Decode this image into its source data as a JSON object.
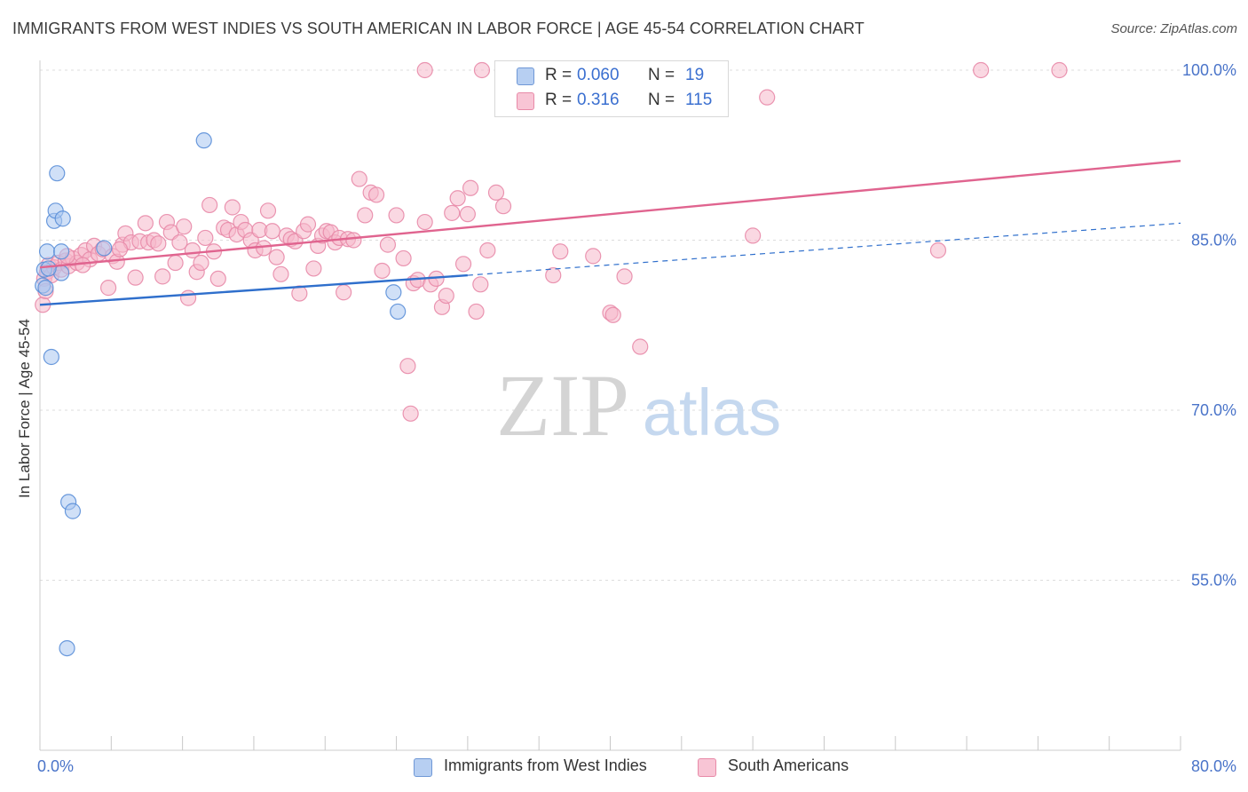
{
  "title": "IMMIGRANTS FROM WEST INDIES VS SOUTH AMERICAN IN LABOR FORCE | AGE 45-54 CORRELATION CHART",
  "source": "Source: ZipAtlas.com",
  "watermark": {
    "zip": "ZIP",
    "atlas": "atlas"
  },
  "legend": {
    "rows": [
      {
        "r_label": "R =",
        "r_value": "0.060",
        "n_label": "N =",
        "n_value": "19"
      },
      {
        "r_label": "R =",
        "r_value": "0.316",
        "n_label": "N =",
        "n_value": "115"
      }
    ]
  },
  "chart_data": {
    "type": "scatter",
    "title": "IMMIGRANTS FROM WEST INDIES VS SOUTH AMERICAN IN LABOR FORCE | AGE 45-54 CORRELATION CHART",
    "xlabel": "",
    "ylabel": "In Labor Force | Age 45-54",
    "xlim": [
      0,
      80
    ],
    "ylim": [
      40,
      101.5
    ],
    "x_tick_labels": [
      "0.0%",
      "80.0%"
    ],
    "y_ticks": [
      55,
      70,
      85,
      100
    ],
    "y_tick_labels": [
      "55.0%",
      "70.0%",
      "85.0%",
      "100.0%"
    ],
    "grid": true,
    "colors": {
      "blue_fill": "#a9c6f0",
      "blue_stroke": "#5b8fd8",
      "blue_line": "#2f6fcc",
      "pink_fill": "#f5b8cb",
      "pink_stroke": "#e88aa8",
      "pink_line": "#e0648f",
      "axis_label": "#4a74c9",
      "grid": "#dddddd"
    },
    "series": [
      {
        "name": "Immigrants from West Indies",
        "color": "blue",
        "r": 0.06,
        "n": 19,
        "trend": {
          "x0": 0,
          "y0": 79.3,
          "x1": 30,
          "y1": 81.9,
          "dash_to_x": 80,
          "dash_to_y": 86.5
        },
        "points": [
          [
            0.2,
            81.0
          ],
          [
            0.3,
            82.4
          ],
          [
            0.5,
            84.0
          ],
          [
            0.4,
            80.8
          ],
          [
            0.8,
            74.7
          ],
          [
            1.0,
            86.7
          ],
          [
            1.1,
            87.6
          ],
          [
            1.2,
            90.9
          ],
          [
            1.5,
            84.0
          ],
          [
            1.6,
            86.9
          ],
          [
            1.5,
            82.1
          ],
          [
            2.0,
            61.9
          ],
          [
            2.3,
            61.1
          ],
          [
            1.9,
            49.0
          ],
          [
            4.5,
            84.3
          ],
          [
            11.5,
            93.8
          ],
          [
            24.8,
            80.4
          ],
          [
            25.1,
            78.7
          ],
          [
            0.6,
            82.5
          ]
        ]
      },
      {
        "name": "South Americans",
        "color": "pink",
        "r": 0.316,
        "n": 115,
        "trend": {
          "x0": 0,
          "y0": 82.6,
          "x1": 80,
          "y1": 92.0
        },
        "points": [
          [
            0.2,
            79.3
          ],
          [
            0.3,
            81.6
          ],
          [
            0.5,
            82.2
          ],
          [
            0.6,
            82.8
          ],
          [
            0.8,
            81.9
          ],
          [
            1.0,
            82.6
          ],
          [
            1.3,
            83.0
          ],
          [
            1.5,
            82.4
          ],
          [
            1.8,
            83.2
          ],
          [
            2.0,
            82.7
          ],
          [
            2.3,
            83.4
          ],
          [
            2.6,
            83.0
          ],
          [
            2.9,
            83.7
          ],
          [
            3.2,
            84.1
          ],
          [
            3.5,
            83.3
          ],
          [
            3.8,
            84.5
          ],
          [
            4.1,
            83.8
          ],
          [
            4.4,
            84.2
          ],
          [
            4.8,
            80.8
          ],
          [
            5.1,
            83.6
          ],
          [
            5.4,
            83.1
          ],
          [
            5.8,
            84.6
          ],
          [
            6.0,
            85.6
          ],
          [
            6.4,
            84.8
          ],
          [
            6.7,
            81.7
          ],
          [
            7.0,
            84.9
          ],
          [
            7.4,
            86.5
          ],
          [
            7.6,
            84.8
          ],
          [
            8.0,
            85.0
          ],
          [
            8.3,
            84.7
          ],
          [
            8.6,
            81.8
          ],
          [
            8.9,
            86.6
          ],
          [
            9.2,
            85.7
          ],
          [
            9.5,
            83.0
          ],
          [
            9.8,
            84.8
          ],
          [
            10.1,
            86.2
          ],
          [
            10.4,
            79.9
          ],
          [
            10.7,
            84.1
          ],
          [
            11.0,
            82.2
          ],
          [
            11.3,
            83.0
          ],
          [
            11.6,
            85.2
          ],
          [
            11.9,
            88.1
          ],
          [
            12.2,
            84.0
          ],
          [
            12.5,
            81.6
          ],
          [
            12.9,
            86.1
          ],
          [
            13.2,
            85.9
          ],
          [
            13.5,
            87.9
          ],
          [
            13.8,
            85.5
          ],
          [
            14.1,
            86.6
          ],
          [
            14.4,
            85.9
          ],
          [
            14.8,
            85.0
          ],
          [
            15.1,
            84.1
          ],
          [
            15.4,
            85.9
          ],
          [
            15.7,
            84.3
          ],
          [
            16.0,
            87.6
          ],
          [
            16.3,
            85.8
          ],
          [
            16.6,
            83.5
          ],
          [
            16.9,
            82.0
          ],
          [
            17.3,
            85.4
          ],
          [
            17.6,
            85.1
          ],
          [
            17.9,
            84.9
          ],
          [
            18.2,
            80.3
          ],
          [
            18.5,
            85.8
          ],
          [
            18.8,
            86.4
          ],
          [
            19.2,
            82.5
          ],
          [
            19.5,
            84.5
          ],
          [
            19.8,
            85.4
          ],
          [
            20.1,
            85.8
          ],
          [
            20.4,
            85.7
          ],
          [
            20.7,
            84.8
          ],
          [
            21.0,
            85.2
          ],
          [
            21.3,
            80.4
          ],
          [
            21.6,
            85.1
          ],
          [
            22.0,
            85.0
          ],
          [
            22.4,
            90.4
          ],
          [
            22.8,
            87.2
          ],
          [
            23.2,
            89.2
          ],
          [
            23.6,
            89.0
          ],
          [
            24.0,
            82.3
          ],
          [
            24.4,
            84.6
          ],
          [
            25.0,
            87.2
          ],
          [
            25.5,
            83.4
          ],
          [
            25.8,
            73.9
          ],
          [
            26.0,
            69.7
          ],
          [
            26.2,
            81.2
          ],
          [
            26.5,
            81.5
          ],
          [
            27.0,
            86.6
          ],
          [
            27.4,
            81.1
          ],
          [
            27.8,
            81.6
          ],
          [
            28.2,
            79.1
          ],
          [
            28.5,
            80.1
          ],
          [
            28.9,
            87.4
          ],
          [
            29.3,
            88.7
          ],
          [
            29.7,
            82.9
          ],
          [
            30.0,
            87.3
          ],
          [
            30.2,
            89.6
          ],
          [
            30.6,
            78.7
          ],
          [
            30.9,
            81.1
          ],
          [
            31.4,
            84.1
          ],
          [
            32.0,
            89.2
          ],
          [
            32.5,
            88.0
          ],
          [
            27.0,
            100.0
          ],
          [
            31.0,
            100.0
          ],
          [
            36.0,
            81.9
          ],
          [
            36.5,
            84.0
          ],
          [
            37.5,
            96.9
          ],
          [
            38.8,
            83.6
          ],
          [
            40.0,
            78.6
          ],
          [
            40.2,
            78.4
          ],
          [
            41.0,
            81.8
          ],
          [
            42.1,
            75.6
          ],
          [
            50.0,
            85.4
          ],
          [
            51.0,
            97.6
          ],
          [
            63.0,
            84.1
          ],
          [
            66.0,
            100.0
          ],
          [
            71.5,
            100.0
          ],
          [
            0.4,
            80.5
          ],
          [
            1.9,
            83.6
          ],
          [
            3.0,
            82.8
          ],
          [
            5.6,
            84.2
          ]
        ]
      }
    ]
  },
  "bottom_legend": [
    {
      "label": "Immigrants from West Indies"
    },
    {
      "label": "South Americans"
    }
  ]
}
